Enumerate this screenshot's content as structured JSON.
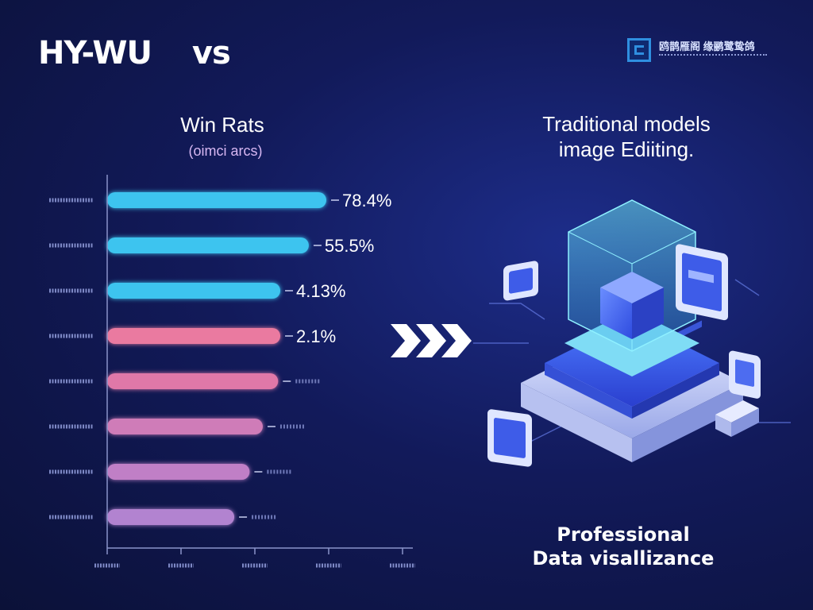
{
  "header": {
    "title": "HY-WU",
    "vs": "vs",
    "logo_text": "鸥鹊雁阁 缘鹂鹭鸷鸽"
  },
  "chart_data": {
    "type": "bar",
    "orientation": "horizontal",
    "title": "Win Rats",
    "subtitle": "(oimci arcs)",
    "categories": [
      "",
      "",
      "",
      "",
      "",
      "",
      "",
      ""
    ],
    "values": [
      78.4,
      55.5,
      4.13,
      2.1,
      null,
      null,
      null,
      null
    ],
    "value_labels": [
      "78.4%",
      "55.5%",
      "4.13%",
      "2.1%",
      "",
      "",
      "",
      ""
    ],
    "bar_lengths_fraction": [
      1.0,
      0.92,
      0.79,
      0.79,
      0.78,
      0.71,
      0.65,
      0.58
    ],
    "colors": [
      "#3cc4ef",
      "#3cc4ef",
      "#3cc4ef",
      "#ea7aa0",
      "#e078a8",
      "#cf7bb8",
      "#c07fc6",
      "#b283d0"
    ],
    "grid": false,
    "legend": "none"
  },
  "right_panel": {
    "title_line1": "Traditional models",
    "title_line2": "image Ediiting.",
    "footer_line1": "Professional",
    "footer_line2": "Data visallizance"
  },
  "icons": {
    "arrows": "triple-chevron-right-icon",
    "illustration": "isometric-server-platform-icon"
  }
}
